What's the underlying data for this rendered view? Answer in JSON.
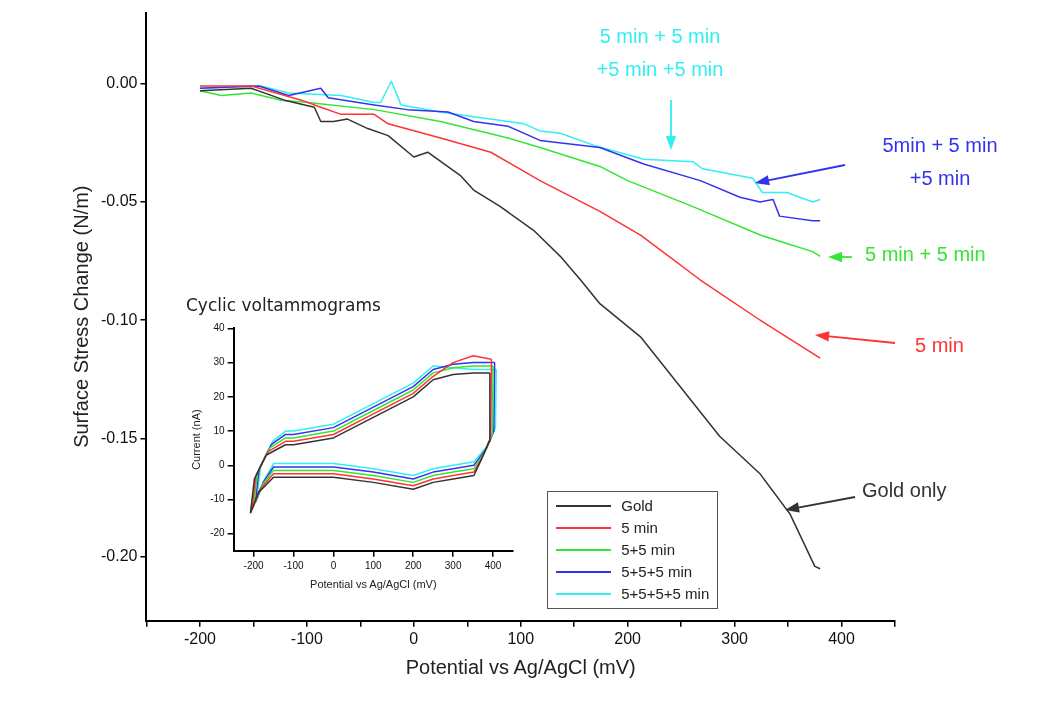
{
  "chart_data": [
    {
      "type": "line",
      "xlabel": "Potential vs Ag/AgCl (mV)",
      "ylabel": "Surface Stress Change (N/m)",
      "xlim": [
        -250,
        450
      ],
      "ylim": [
        -0.227,
        0.03
      ],
      "xticks": [
        {
          "value": -250,
          "label": null
        },
        -200,
        {
          "value": -150,
          "label": null
        },
        -100,
        {
          "value": -50,
          "label": null
        },
        0,
        {
          "value": 50,
          "label": null
        },
        100,
        {
          "value": 150,
          "label": null
        },
        200,
        {
          "value": 250,
          "label": null
        },
        300,
        {
          "value": 350,
          "label": null
        },
        400,
        {
          "value": 450,
          "label": null
        }
      ],
      "yticks": [
        {
          "value": 0,
          "label": "0.00"
        },
        {
          "value": -0.05,
          "label": "-0.05"
        },
        {
          "value": -0.1,
          "label": "-0.10"
        },
        {
          "value": -0.15,
          "label": "-0.15"
        },
        {
          "value": -0.2,
          "label": "-0.20"
        }
      ],
      "legend": "bottom",
      "series": [
        {
          "name": "Gold",
          "color": "#333333",
          "x": [
            -200,
            -152,
            -121,
            -93,
            -87,
            -75,
            -62,
            -43,
            -24,
            0,
            13,
            44,
            56,
            81,
            112,
            137,
            156,
            174,
            212,
            249,
            286,
            324,
            352,
            375,
            380
          ],
          "values": [
            -0.003,
            -0.002,
            -0.007,
            -0.01,
            -0.016,
            -0.016,
            -0.015,
            -0.019,
            -0.022,
            -0.031,
            -0.029,
            -0.039,
            -0.045,
            -0.052,
            -0.062,
            -0.073,
            -0.083,
            -0.093,
            -0.107,
            -0.128,
            -0.149,
            -0.165,
            -0.182,
            -0.204,
            -0.205
          ]
        },
        {
          "name": "5 min",
          "color": "#ff3333",
          "x": [
            -200,
            -152,
            -105,
            -87,
            -68,
            -37,
            -24,
            25,
            72,
            118,
            174,
            212,
            268,
            324,
            373,
            380
          ],
          "values": [
            -0.001,
            -0.001,
            -0.007,
            -0.01,
            -0.013,
            -0.013,
            -0.017,
            -0.023,
            -0.029,
            -0.041,
            -0.054,
            -0.064,
            -0.083,
            -0.1,
            -0.114,
            -0.116
          ]
        },
        {
          "name": "5+5 min",
          "color": "#33e633",
          "x": [
            -200,
            -180,
            -152,
            -124,
            -99,
            -37,
            25,
            88,
            118,
            174,
            200,
            261,
            324,
            373,
            380
          ],
          "values": [
            -0.003,
            -0.005,
            -0.004,
            -0.007,
            -0.008,
            -0.011,
            -0.016,
            -0.023,
            -0.027,
            -0.035,
            -0.041,
            -0.052,
            -0.064,
            -0.071,
            -0.073
          ]
        },
        {
          "name": "5+5+5 min",
          "color": "#3333ee",
          "x": [
            -200,
            -145,
            -117,
            -87,
            -80,
            -37,
            -6,
            32,
            56,
            88,
            118,
            174,
            215,
            268,
            305,
            324,
            336,
            342,
            373,
            380
          ],
          "values": [
            -0.002,
            -0.001,
            -0.005,
            -0.002,
            -0.006,
            -0.009,
            -0.011,
            -0.012,
            -0.016,
            -0.018,
            -0.024,
            -0.027,
            -0.034,
            -0.041,
            -0.048,
            -0.05,
            -0.049,
            -0.056,
            -0.058,
            -0.058
          ]
        },
        {
          "name": "5+5+5+5 min",
          "color": "#33eef2",
          "x": [
            -200,
            -143,
            -117,
            -68,
            -37,
            -31,
            -21,
            -12,
            25,
            56,
            103,
            118,
            137,
            168,
            215,
            261,
            270,
            317,
            326,
            349,
            373,
            380
          ],
          "values": [
            -0.002,
            -0.001,
            -0.004,
            -0.005,
            -0.008,
            -0.008,
            0.001,
            -0.009,
            -0.012,
            -0.014,
            -0.017,
            -0.02,
            -0.021,
            -0.026,
            -0.032,
            -0.033,
            -0.036,
            -0.04,
            -0.046,
            -0.046,
            -0.05,
            -0.049
          ]
        }
      ],
      "annotations": [
        "Gold only",
        "5 min",
        "5 min + 5 min",
        "5min + 5 min\n+5 min",
        "5 min + 5 min\n+5 min +5 min"
      ]
    },
    {
      "type": "line",
      "title": "Cyclic voltammograms",
      "xlabel": "Potential vs Ag/AgCl (mV)",
      "ylabel": "Current (nA)",
      "xlim": [
        -250,
        450
      ],
      "ylim": [
        -25,
        40
      ],
      "xticks": [
        -200,
        -100,
        0,
        100,
        200,
        300,
        400
      ],
      "yticks": [
        -20,
        -10,
        0,
        10,
        20,
        30,
        40
      ],
      "series": [
        {
          "color": "#333333",
          "x": [
            -208,
            -198,
            -168,
            -120,
            -100,
            0,
            100,
            200,
            250,
            300,
            350,
            392
          ],
          "values": [
            -14,
            -4,
            3,
            6,
            6,
            8,
            14,
            20,
            25,
            26.5,
            27,
            27
          ]
        },
        {
          "color": "#333333",
          "x": [
            -208,
            -188,
            -150,
            -100,
            0,
            100,
            200,
            250,
            300,
            352,
            372,
            390,
            392
          ],
          "values": [
            -14,
            -8,
            -3.5,
            -3.5,
            -3.5,
            -5,
            -7,
            -5,
            -4,
            -3,
            2,
            7,
            27
          ]
        },
        {
          "color": "#ff3333",
          "x": [
            -204,
            -194,
            -164,
            -120,
            -100,
            0,
            100,
            200,
            250,
            300,
            350,
            396
          ],
          "values": [
            -13,
            -3,
            4,
            7,
            7,
            9,
            15,
            21,
            26,
            30,
            32,
            31
          ]
        },
        {
          "color": "#ff3333",
          "x": [
            -204,
            -184,
            -150,
            -100,
            0,
            100,
            200,
            250,
            300,
            352,
            376,
            394,
            396
          ],
          "values": [
            -13,
            -7,
            -2.5,
            -2.5,
            -2.5,
            -4,
            -6,
            -4,
            -3,
            -2,
            3,
            8,
            31
          ]
        },
        {
          "color": "#33e633",
          "x": [
            -200,
            -190,
            -160,
            -120,
            -100,
            0,
            100,
            200,
            250,
            300,
            350,
            400
          ],
          "values": [
            -12,
            -2,
            5,
            8,
            8,
            10,
            16,
            22,
            27,
            28.5,
            29,
            29
          ]
        },
        {
          "color": "#33e633",
          "x": [
            -200,
            -180,
            -150,
            -100,
            0,
            100,
            200,
            250,
            300,
            352,
            380,
            398,
            400
          ],
          "values": [
            -12,
            -6,
            -1.5,
            -1.5,
            -1.5,
            -3,
            -5,
            -3,
            -2,
            -1,
            4,
            9,
            29
          ]
        },
        {
          "color": "#3333ee",
          "x": [
            -196,
            -186,
            -156,
            -120,
            -100,
            0,
            100,
            200,
            250,
            300,
            350,
            404
          ],
          "values": [
            -11,
            -1,
            6,
            9,
            9,
            11,
            17,
            23,
            28,
            29.5,
            30,
            30
          ]
        },
        {
          "color": "#3333ee",
          "x": [
            -196,
            -176,
            -150,
            -100,
            0,
            100,
            200,
            250,
            300,
            352,
            384,
            402,
            404
          ],
          "values": [
            -11,
            -5,
            -0.5,
            -0.5,
            -0.5,
            -2,
            -4,
            -2,
            -1,
            0,
            5,
            10,
            30
          ]
        },
        {
          "color": "#33eef2",
          "x": [
            -192,
            -182,
            -152,
            -120,
            -100,
            0,
            100,
            200,
            250,
            300,
            350,
            408
          ],
          "values": [
            -10,
            0,
            7,
            10,
            10,
            12,
            18,
            24,
            29,
            28.5,
            28,
            28
          ]
        },
        {
          "color": "#33eef2",
          "x": [
            -192,
            -172,
            -150,
            -100,
            0,
            100,
            200,
            250,
            300,
            352,
            388,
            406,
            408
          ],
          "values": [
            -10,
            -4,
            0.5,
            0.5,
            0.5,
            -1,
            -3,
            -1,
            0,
            1,
            6,
            11,
            28
          ]
        }
      ]
    }
  ]
}
